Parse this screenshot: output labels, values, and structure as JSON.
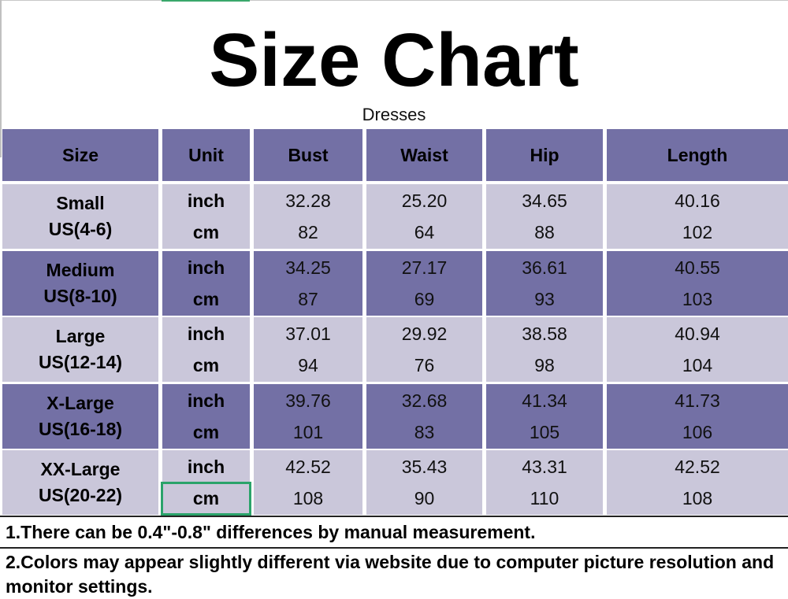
{
  "title": "Size Chart",
  "subtitle": "Dresses",
  "table": {
    "headers": [
      "Size",
      "Unit",
      "Bust",
      "Waist",
      "Hip",
      "Length"
    ],
    "rows": [
      {
        "size": "Small",
        "us": "US(4-6)",
        "inch": {
          "unit": "inch",
          "bust": "32.28",
          "waist": "25.20",
          "hip": "34.65",
          "length": "40.16"
        },
        "cm": {
          "unit": "cm",
          "bust": "82",
          "waist": "64",
          "hip": "88",
          "length": "102"
        }
      },
      {
        "size": "Medium",
        "us": "US(8-10)",
        "inch": {
          "unit": "inch",
          "bust": "34.25",
          "waist": "27.17",
          "hip": "36.61",
          "length": "40.55"
        },
        "cm": {
          "unit": "cm",
          "bust": "87",
          "waist": "69",
          "hip": "93",
          "length": "103"
        }
      },
      {
        "size": "Large",
        "us": "US(12-14)",
        "inch": {
          "unit": "inch",
          "bust": "37.01",
          "waist": "29.92",
          "hip": "38.58",
          "length": "40.94"
        },
        "cm": {
          "unit": "cm",
          "bust": "94",
          "waist": "76",
          "hip": "98",
          "length": "104"
        }
      },
      {
        "size": "X-Large",
        "us": "US(16-18)",
        "inch": {
          "unit": "inch",
          "bust": "39.76",
          "waist": "32.68",
          "hip": "41.34",
          "length": "41.73"
        },
        "cm": {
          "unit": "cm",
          "bust": "101",
          "waist": "83",
          "hip": "105",
          "length": "106"
        }
      },
      {
        "size": "XX-Large",
        "us": "US(20-22)",
        "inch": {
          "unit": "inch",
          "bust": "42.52",
          "waist": "35.43",
          "hip": "43.31",
          "length": "42.52"
        },
        "cm": {
          "unit": "cm",
          "bust": "108",
          "waist": "90",
          "hip": "110",
          "length": "108"
        }
      }
    ]
  },
  "notes": [
    "1.There can be 0.4\"-0.8\" differences by manual measurement.",
    "2.Colors may appear slightly different via website due to computer picture resolution and monitor settings."
  ],
  "colors": {
    "header": "#7370a5",
    "light_row": "#cac7da",
    "selection": "#2aa36a"
  }
}
